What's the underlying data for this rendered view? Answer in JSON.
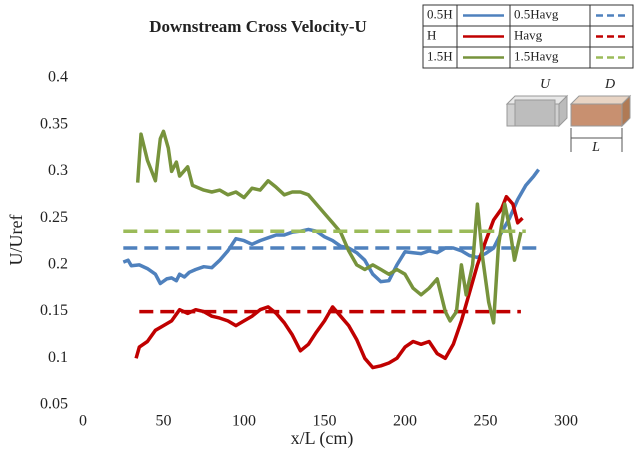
{
  "chart_data": {
    "type": "line",
    "title": "Downstream  Cross Velocity-U",
    "x_label": "x/L (cm)",
    "y_label": "U/Uref",
    "xlim": [
      0,
      300
    ],
    "xticks": [
      0,
      50,
      100,
      150,
      200,
      250,
      300
    ],
    "ylim": [
      0.05,
      0.4
    ],
    "yticks": [
      0.05,
      0.1,
      0.15,
      0.2,
      0.25,
      0.3,
      0.35,
      0.4
    ],
    "grid": false,
    "legend": "top-right",
    "inset_labels": [
      "U",
      "D",
      "L"
    ],
    "series": [
      {
        "name": "0.5H",
        "color": "#4f81bd",
        "dash": false,
        "x": [
          25,
          28,
          30,
          35,
          40,
          45,
          48,
          52,
          55,
          58,
          60,
          63,
          66,
          70,
          75,
          80,
          85,
          90,
          95,
          100,
          105,
          110,
          115,
          120,
          125,
          130,
          135,
          140,
          145,
          150,
          155,
          160,
          165,
          170,
          175,
          180,
          185,
          190,
          195,
          200,
          205,
          210,
          215,
          220,
          225,
          230,
          235,
          240,
          245,
          250,
          255,
          260,
          265,
          270,
          275,
          280,
          283
        ],
        "values": [
          0.203,
          0.205,
          0.199,
          0.2,
          0.196,
          0.19,
          0.18,
          0.185,
          0.186,
          0.183,
          0.19,
          0.187,
          0.192,
          0.195,
          0.198,
          0.197,
          0.205,
          0.215,
          0.228,
          0.226,
          0.222,
          0.226,
          0.229,
          0.232,
          0.232,
          0.235,
          0.236,
          0.238,
          0.236,
          0.23,
          0.226,
          0.22,
          0.218,
          0.213,
          0.205,
          0.19,
          0.182,
          0.183,
          0.2,
          0.214,
          0.213,
          0.212,
          0.215,
          0.213,
          0.218,
          0.218,
          0.215,
          0.21,
          0.208,
          0.212,
          0.218,
          0.235,
          0.25,
          0.27,
          0.285,
          0.295,
          0.302
        ]
      },
      {
        "name": "0.5Havg",
        "color": "#4f81bd",
        "dash": true,
        "x": [
          25,
          283
        ],
        "values": [
          0.218,
          0.218
        ]
      },
      {
        "name": "H",
        "color": "#c00000",
        "dash": false,
        "x": [
          33,
          35,
          40,
          45,
          50,
          55,
          60,
          65,
          70,
          75,
          80,
          85,
          90,
          95,
          100,
          105,
          110,
          115,
          120,
          125,
          130,
          135,
          140,
          145,
          150,
          155,
          160,
          165,
          170,
          175,
          180,
          185,
          190,
          195,
          200,
          205,
          210,
          215,
          220,
          225,
          230,
          235,
          240,
          245,
          250,
          255,
          260,
          263,
          267,
          270,
          273
        ],
        "values": [
          0.1,
          0.112,
          0.118,
          0.13,
          0.135,
          0.14,
          0.152,
          0.148,
          0.152,
          0.15,
          0.145,
          0.143,
          0.14,
          0.135,
          0.14,
          0.145,
          0.152,
          0.155,
          0.148,
          0.138,
          0.125,
          0.108,
          0.115,
          0.128,
          0.14,
          0.155,
          0.145,
          0.135,
          0.12,
          0.1,
          0.09,
          0.092,
          0.095,
          0.1,
          0.112,
          0.118,
          0.115,
          0.118,
          0.105,
          0.1,
          0.115,
          0.14,
          0.17,
          0.2,
          0.225,
          0.248,
          0.26,
          0.273,
          0.265,
          0.245,
          0.25
        ]
      },
      {
        "name": "Havg",
        "color": "#c00000",
        "dash": true,
        "x": [
          35,
          272
        ],
        "values": [
          0.15,
          0.15
        ]
      },
      {
        "name": "1.5H",
        "color": "#77933c",
        "dash": false,
        "x": [
          34,
          36,
          40,
          45,
          48,
          50,
          53,
          55,
          58,
          60,
          65,
          68,
          75,
          80,
          85,
          90,
          95,
          100,
          105,
          110,
          115,
          120,
          125,
          130,
          135,
          140,
          145,
          150,
          155,
          160,
          165,
          170,
          175,
          180,
          185,
          190,
          195,
          200,
          205,
          210,
          215,
          220,
          225,
          228,
          232,
          235,
          238,
          242,
          245,
          248,
          252,
          255,
          258,
          262,
          265,
          268,
          272
        ],
        "values": [
          0.288,
          0.34,
          0.312,
          0.29,
          0.335,
          0.343,
          0.325,
          0.3,
          0.31,
          0.295,
          0.305,
          0.285,
          0.28,
          0.278,
          0.28,
          0.275,
          0.278,
          0.272,
          0.282,
          0.28,
          0.29,
          0.283,
          0.275,
          0.278,
          0.278,
          0.275,
          0.265,
          0.255,
          0.245,
          0.235,
          0.215,
          0.2,
          0.195,
          0.2,
          0.195,
          0.19,
          0.195,
          0.19,
          0.175,
          0.168,
          0.175,
          0.185,
          0.15,
          0.14,
          0.15,
          0.2,
          0.168,
          0.2,
          0.265,
          0.21,
          0.16,
          0.138,
          0.22,
          0.265,
          0.24,
          0.205,
          0.235
        ]
      },
      {
        "name": "1.5Havg",
        "color": "#9bbb59",
        "dash": true,
        "x": [
          25,
          275
        ],
        "values": [
          0.236,
          0.236
        ]
      }
    ]
  }
}
